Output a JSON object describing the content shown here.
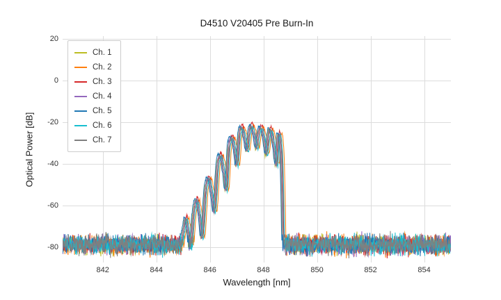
{
  "chart_data": {
    "type": "line",
    "title": "D4510 V20405 Pre Burn-In",
    "xlabel": "Wavelength [nm]",
    "ylabel": "Optical Power [dB]",
    "xlim": [
      840.5,
      855.0
    ],
    "ylim": [
      -87.5,
      21.5
    ],
    "x_ticks": [
      842,
      844,
      846,
      848,
      850,
      852,
      854
    ],
    "y_ticks": [
      20,
      0,
      -20,
      -40,
      -60,
      -80
    ],
    "grid": true,
    "grid_color": "#dcdcdc",
    "legend_position": "upper-left",
    "noise_floor_db": -79,
    "noise_peak_to_peak_db": 9,
    "noise_step_nm": 0.012,
    "seed": 7,
    "signal_range_nm": [
      844.9,
      848.78
    ],
    "envelope": [
      [
        844.9,
        -82
      ],
      [
        845.05,
        -70
      ],
      [
        845.12,
        -66
      ],
      [
        845.2,
        -72
      ],
      [
        845.28,
        -82
      ],
      [
        845.4,
        -64
      ],
      [
        845.52,
        -57
      ],
      [
        845.64,
        -66
      ],
      [
        845.72,
        -75
      ],
      [
        845.85,
        -52
      ],
      [
        845.98,
        -47
      ],
      [
        846.1,
        -56
      ],
      [
        846.18,
        -62
      ],
      [
        846.3,
        -40
      ],
      [
        846.42,
        -36
      ],
      [
        846.55,
        -45
      ],
      [
        846.62,
        -52
      ],
      [
        846.72,
        -31
      ],
      [
        846.85,
        -27.5
      ],
      [
        846.95,
        -34
      ],
      [
        847.02,
        -40
      ],
      [
        847.12,
        -24.5
      ],
      [
        847.22,
        -22.5
      ],
      [
        847.32,
        -28
      ],
      [
        847.4,
        -33
      ],
      [
        847.5,
        -23
      ],
      [
        847.58,
        -21.8
      ],
      [
        847.68,
        -27
      ],
      [
        847.76,
        -32
      ],
      [
        847.85,
        -23.5
      ],
      [
        847.95,
        -22.8
      ],
      [
        848.05,
        -29
      ],
      [
        848.12,
        -35
      ],
      [
        848.22,
        -24
      ],
      [
        848.32,
        -25
      ],
      [
        848.42,
        -33
      ],
      [
        848.5,
        -40
      ],
      [
        848.55,
        -27
      ],
      [
        848.62,
        -26
      ],
      [
        848.68,
        -35
      ],
      [
        848.72,
        -55
      ],
      [
        848.76,
        -82
      ]
    ],
    "series": [
      {
        "name": "Ch. 1",
        "color": "#bcbd22",
        "wl_offset": -0.05,
        "db_offset": -0.8
      },
      {
        "name": "Ch. 2",
        "color": "#ff7f0e",
        "wl_offset": 0.09,
        "db_offset": -0.2
      },
      {
        "name": "Ch. 3",
        "color": "#d62728",
        "wl_offset": 0.02,
        "db_offset": 0.9
      },
      {
        "name": "Ch. 4",
        "color": "#9467bd",
        "wl_offset": -0.03,
        "db_offset": -0.4
      },
      {
        "name": "Ch. 5",
        "color": "#1f77b4",
        "wl_offset": -0.07,
        "db_offset": 0.2
      },
      {
        "name": "Ch. 6",
        "color": "#17becf",
        "wl_offset": 0.04,
        "db_offset": -1.0
      },
      {
        "name": "Ch. 7",
        "color": "#7f7f7f",
        "wl_offset": 0.0,
        "db_offset": -0.5
      }
    ]
  }
}
